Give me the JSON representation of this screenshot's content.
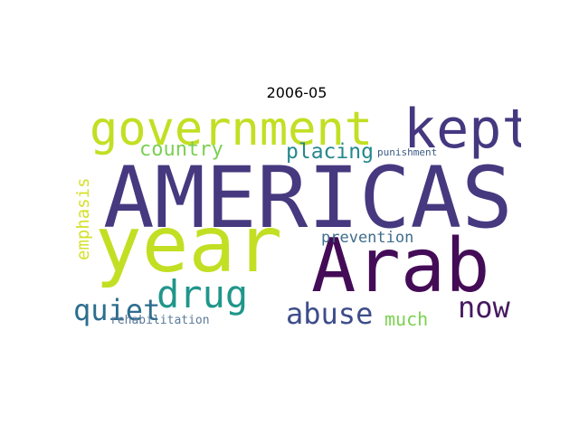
{
  "title": "2006-05",
  "words": [
    {
      "text": "AMERICAS",
      "color": "#46397f"
    },
    {
      "text": "year",
      "color": "#c2df23"
    },
    {
      "text": "Arab",
      "color": "#440c57"
    },
    {
      "text": "government",
      "color": "#c2df23"
    },
    {
      "text": "kept",
      "color": "#453880"
    },
    {
      "text": "drug",
      "color": "#20968b"
    },
    {
      "text": "abuse",
      "color": "#3d4d8a"
    },
    {
      "text": "now",
      "color": "#46195f"
    },
    {
      "text": "quiet",
      "color": "#2d6e8e"
    },
    {
      "text": "placing",
      "color": "#24888d"
    },
    {
      "text": "country",
      "color": "#7ccf55"
    },
    {
      "text": "emphasis",
      "color": "#d4e12b"
    },
    {
      "text": "prevention",
      "color": "#3f6d8d"
    },
    {
      "text": "much",
      "color": "#7cd250"
    },
    {
      "text": "rehabilitation",
      "color": "#5b7a9a"
    },
    {
      "text": "punishment",
      "color": "#3b5a84"
    }
  ]
}
